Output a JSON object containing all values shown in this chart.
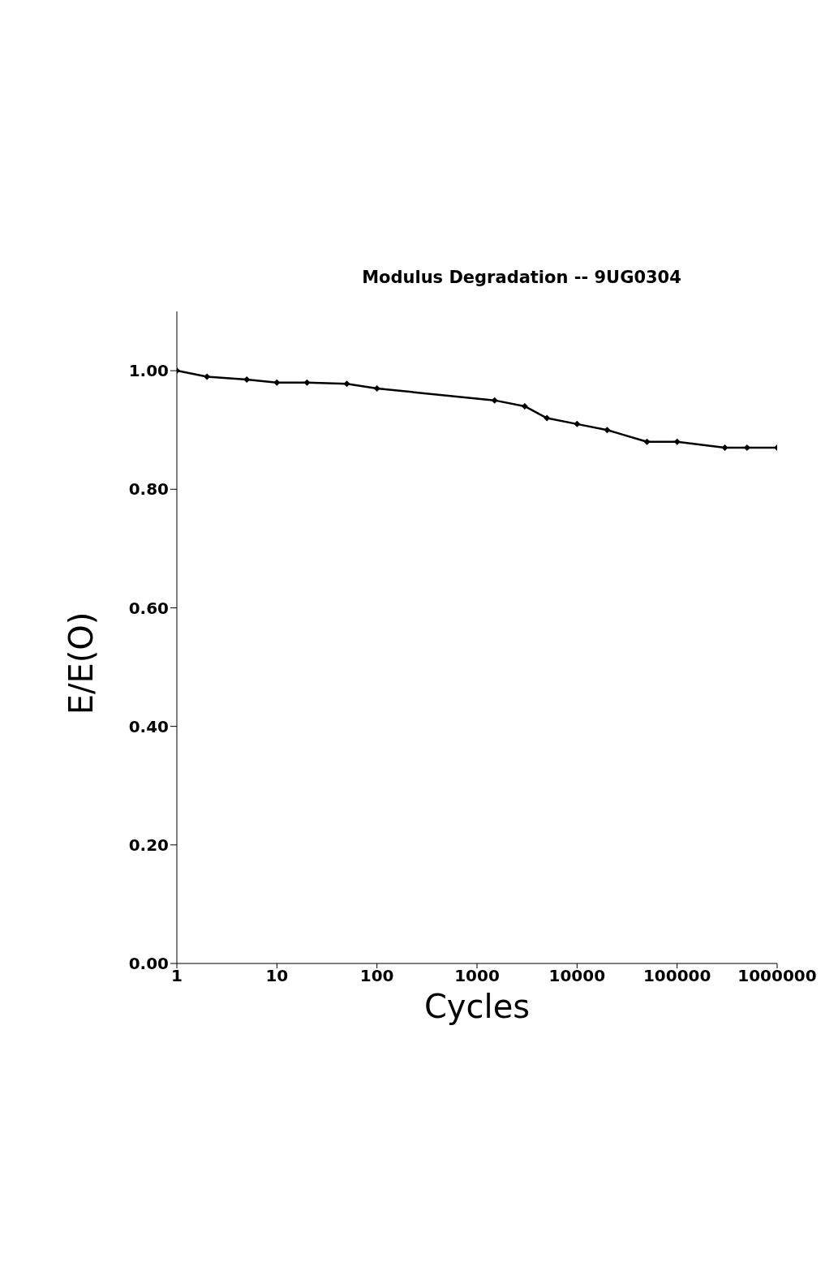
{
  "chart_data": {
    "type": "line",
    "title": "Modulus Degradation -- 9UG0304",
    "xlabel": "Cycles",
    "ylabel": "E/E(O)",
    "x": [
      1,
      2,
      5,
      10,
      20,
      50,
      100,
      1500,
      3000,
      5000,
      10000,
      20000,
      50000,
      100000,
      300000,
      500000,
      1000000
    ],
    "series": [
      {
        "color": "#000000",
        "values": [
          1.0,
          0.99,
          0.985,
          0.98,
          0.98,
          0.978,
          0.97,
          0.95,
          0.94,
          0.92,
          0.91,
          0.9,
          0.88,
          0.88,
          0.87,
          0.87,
          0.87
        ]
      }
    ],
    "log": "x",
    "xlim": [
      1,
      1000000
    ],
    "xticks": [
      1,
      10,
      100,
      1000,
      10000,
      100000,
      1000000
    ],
    "ylim": [
      0,
      1.1
    ],
    "yticks": [
      {
        "value": 0,
        "label": "0.00"
      },
      {
        "value": 0.2,
        "label": "0.20"
      },
      {
        "value": 0.4,
        "label": "0.40"
      },
      {
        "value": 0.6,
        "label": "0.60"
      },
      {
        "value": 0.8,
        "label": "0.80"
      },
      {
        "value": 1,
        "label": "1.00"
      }
    ],
    "grid": false,
    "legend": false,
    "marker": "diamond",
    "line_style": "solid"
  }
}
